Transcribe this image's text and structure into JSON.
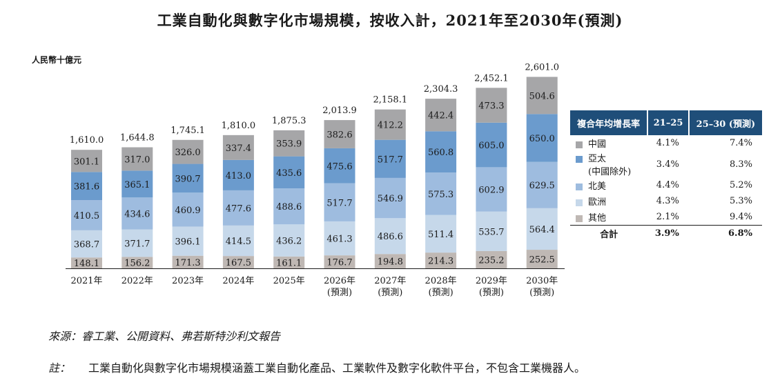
{
  "page": {
    "title": "工業自動化與數字化市場規模，按收入計，2021年至2030年(預測)",
    "unit_label": "人民幣十億元",
    "source": "來源：睿工業、公開資料、弗若斯特沙利文報告",
    "note_tag": "註：",
    "note_text": "工業自動化與數字化市場規模涵蓋工業自動化產品、工業軟件及數字化軟件平台，不包含工業機器人。"
  },
  "legend": {
    "header": [
      "複合年均增長率",
      "21–25",
      "25–30 (預測)"
    ],
    "rows": [
      {
        "name": "中國",
        "sub": "",
        "cagr_21_25": "4.1%",
        "cagr_25_30": "7.4%"
      },
      {
        "name": "亞太",
        "sub": "(中國除外)",
        "cagr_21_25": "3.4%",
        "cagr_25_30": "8.3%"
      },
      {
        "name": "北美",
        "sub": "",
        "cagr_21_25": "4.4%",
        "cagr_25_30": "5.2%"
      },
      {
        "name": "歐洲",
        "sub": "",
        "cagr_21_25": "4.3%",
        "cagr_25_30": "5.3%"
      },
      {
        "name": "其他",
        "sub": "",
        "cagr_21_25": "2.1%",
        "cagr_25_30": "9.4%"
      }
    ],
    "total": {
      "name": "合計",
      "cagr_21_25": "3.9%",
      "cagr_25_30": "6.8%"
    }
  },
  "chart_data": {
    "type": "bar",
    "stacked": true,
    "title": "工業自動化與數字化市場規模，按收入計，2021年至2030年(預測)",
    "ylabel": "人民幣十億元",
    "xlabel": "",
    "categories": [
      "2021年",
      "2022年",
      "2023年",
      "2024年",
      "2025年",
      "2026年",
      "2027年",
      "2028年",
      "2029年",
      "2030年"
    ],
    "category_sublabels": [
      "",
      "",
      "",
      "",
      "",
      "(預測)",
      "(預測)",
      "(預測)",
      "(預測)",
      "(預測)"
    ],
    "ylim": [
      0,
      2700
    ],
    "series": [
      {
        "name": "其他",
        "color": "#bfb8b4",
        "values": [
          148.1,
          156.2,
          171.3,
          167.5,
          161.1,
          176.7,
          194.8,
          214.3,
          235.2,
          252.5
        ]
      },
      {
        "name": "歐洲",
        "color": "#c6d8ea",
        "values": [
          368.7,
          371.7,
          396.1,
          414.5,
          436.2,
          461.3,
          486.6,
          511.4,
          535.7,
          564.4
        ]
      },
      {
        "name": "北美",
        "color": "#9ebcdf",
        "values": [
          410.5,
          434.6,
          460.9,
          477.6,
          488.6,
          517.7,
          546.9,
          575.3,
          602.9,
          629.5
        ]
      },
      {
        "name": "亞太(中國除外)",
        "color": "#6b9bcd",
        "values": [
          381.6,
          365.1,
          390.7,
          413.0,
          435.6,
          475.6,
          517.7,
          560.8,
          605.0,
          650.0
        ]
      },
      {
        "name": "中國",
        "color": "#a6a6a8",
        "values": [
          301.1,
          317.0,
          326.0,
          337.4,
          353.9,
          382.6,
          412.2,
          442.4,
          473.3,
          504.6
        ]
      }
    ],
    "totals": [
      "1,610.0",
      "1,644.8",
      "1,745.1",
      "1,810.0",
      "1,875.3",
      "2,013.9",
      "2,158.1",
      "2,304.3",
      "2,452.1",
      "2,601.0"
    ],
    "grid": false,
    "legend_position": "right"
  }
}
